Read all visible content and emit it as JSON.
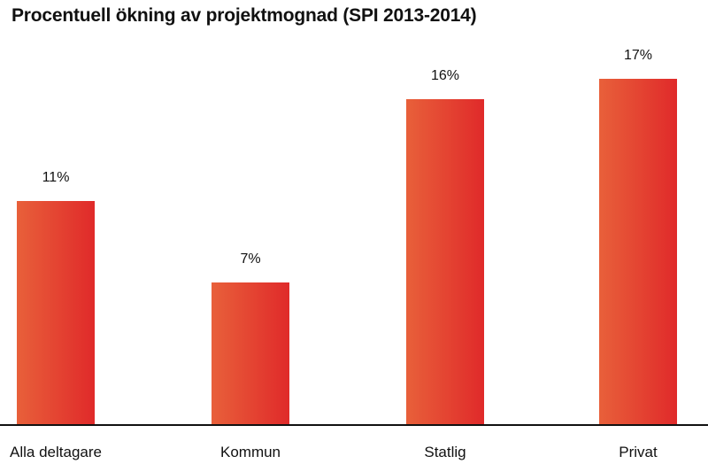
{
  "chart_data": {
    "type": "bar",
    "title": "Procentuell ökning av projektmognad (SPI 2013-2014)",
    "categories": [
      "Alla deltagare",
      "Kommun",
      "Statlig",
      "Privat"
    ],
    "values": [
      11,
      7,
      16,
      17
    ],
    "value_labels": [
      "11%",
      "7%",
      "16%",
      "17%"
    ],
    "xlabel": "",
    "ylabel": "",
    "ylim": [
      0,
      20
    ],
    "grid": false,
    "legend": "none",
    "colors": {
      "bar_gradient_start": "#E8603A",
      "bar_gradient_end": "#E02A2A",
      "axis": "#111111"
    }
  }
}
